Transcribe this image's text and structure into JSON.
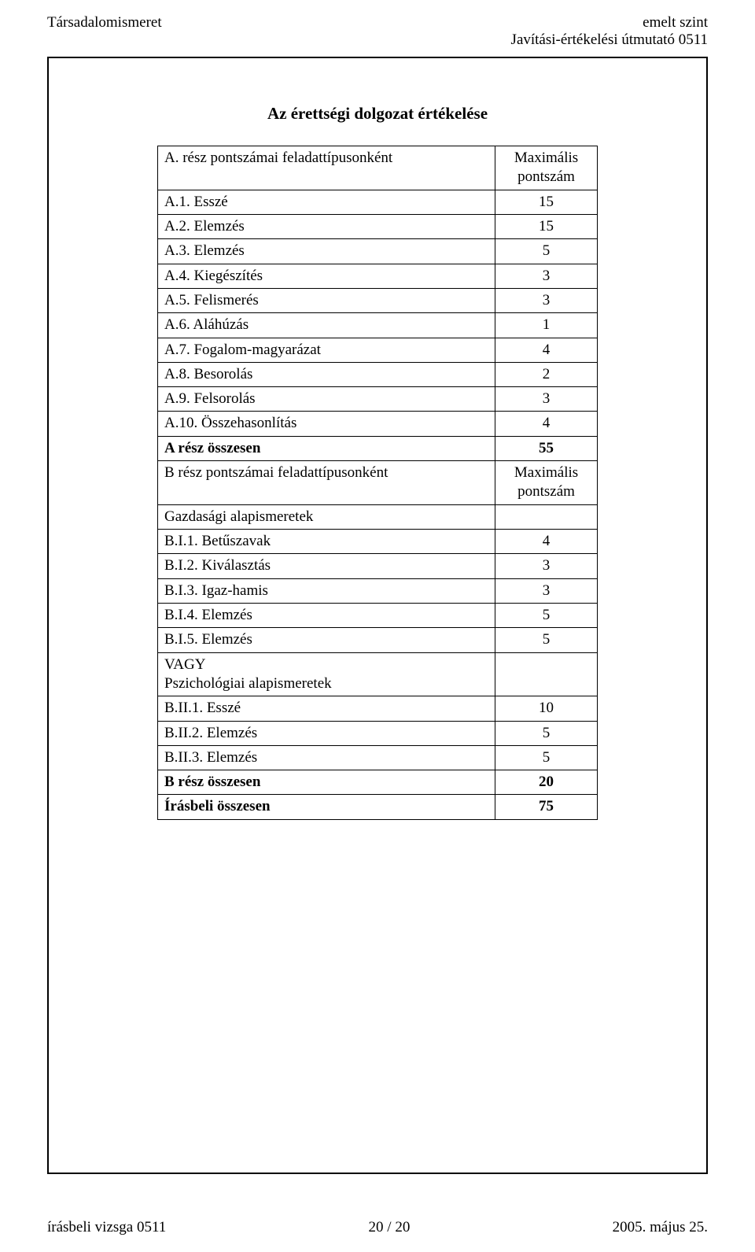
{
  "header": {
    "left": "Társadalomismeret",
    "right_line1": "emelt szint",
    "right_line2": "Javítási-értékelési útmutató 0511"
  },
  "title": "Az érettségi dolgozat értékelése",
  "table": {
    "rows": [
      {
        "label": "A. rész pontszámai feladattípusonként",
        "value": "Maximális\npontszám",
        "bold": false
      },
      {
        "label": "A.1. Esszé",
        "value": "15",
        "bold": false
      },
      {
        "label": "A.2. Elemzés",
        "value": "15",
        "bold": false
      },
      {
        "label": "A.3. Elemzés",
        "value": "5",
        "bold": false
      },
      {
        "label": "A.4. Kiegészítés",
        "value": "3",
        "bold": false
      },
      {
        "label": "A.5. Felismerés",
        "value": "3",
        "bold": false
      },
      {
        "label": "A.6. Aláhúzás",
        "value": "1",
        "bold": false
      },
      {
        "label": "A.7. Fogalom-magyarázat",
        "value": "4",
        "bold": false
      },
      {
        "label": "A.8. Besorolás",
        "value": "2",
        "bold": false
      },
      {
        "label": "A.9. Felsorolás",
        "value": "3",
        "bold": false
      },
      {
        "label": "A.10. Összehasonlítás",
        "value": "4",
        "bold": false
      },
      {
        "label": "A rész összesen",
        "value": "55",
        "bold": true
      },
      {
        "label": "B rész pontszámai feladattípusonként",
        "value": "Maximális\npontszám",
        "bold": false
      },
      {
        "label": "Gazdasági alapismeretek",
        "value": "",
        "bold": false
      },
      {
        "label": "B.I.1. Betűszavak",
        "value": "4",
        "bold": false
      },
      {
        "label": "B.I.2. Kiválasztás",
        "value": "3",
        "bold": false
      },
      {
        "label": "B.I.3. Igaz-hamis",
        "value": "3",
        "bold": false
      },
      {
        "label": "B.I.4. Elemzés",
        "value": "5",
        "bold": false
      },
      {
        "label": "B.I.5. Elemzés",
        "value": "5",
        "bold": false
      },
      {
        "label": "VAGY\nPszichológiai alapismeretek",
        "value": "",
        "bold": false
      },
      {
        "label": "B.II.1. Esszé",
        "value": "10",
        "bold": false
      },
      {
        "label": "B.II.2. Elemzés",
        "value": "5",
        "bold": false
      },
      {
        "label": "B.II.3. Elemzés",
        "value": "5",
        "bold": false
      },
      {
        "label": "B rész összesen",
        "value": "20",
        "bold": true
      },
      {
        "label": "Írásbeli összesen",
        "value": "75",
        "bold": true
      }
    ]
  },
  "footer": {
    "left": "írásbeli vizsga 0511",
    "center": "20 / 20",
    "right": "2005. május 25."
  }
}
